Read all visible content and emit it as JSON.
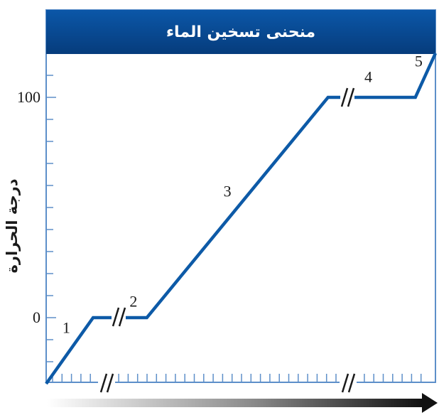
{
  "chart_data": {
    "type": "line",
    "title": "منحنى تسخين الماء",
    "ylabel": "درجة الحرارة",
    "xlabel": "",
    "y_ticks": [
      {
        "value": 0,
        "label": "0"
      },
      {
        "value": 100,
        "label": "100"
      }
    ],
    "ylim": [
      -30,
      135
    ],
    "series": [
      {
        "points": [
          {
            "x": 0,
            "y": -30
          },
          {
            "x": 7,
            "y": 0
          },
          {
            "x": 15,
            "y": 0
          },
          {
            "x": 42,
            "y": 100
          },
          {
            "x": 55,
            "y": 100
          },
          {
            "x": 58,
            "y": 120
          }
        ]
      }
    ],
    "segment_labels": [
      {
        "label": "1",
        "x": 3,
        "y": -7
      },
      {
        "label": "2",
        "x": 13,
        "y": 5
      },
      {
        "label": "3",
        "x": 27,
        "y": 55
      },
      {
        "label": "4",
        "x": 48,
        "y": 107
      },
      {
        "label": "5",
        "x": 55.5,
        "y": 114
      }
    ],
    "grid": false,
    "colors": {
      "line": "#0d5aa7",
      "title_band": "#0a4c9a",
      "axis": "#4f86c6"
    }
  }
}
